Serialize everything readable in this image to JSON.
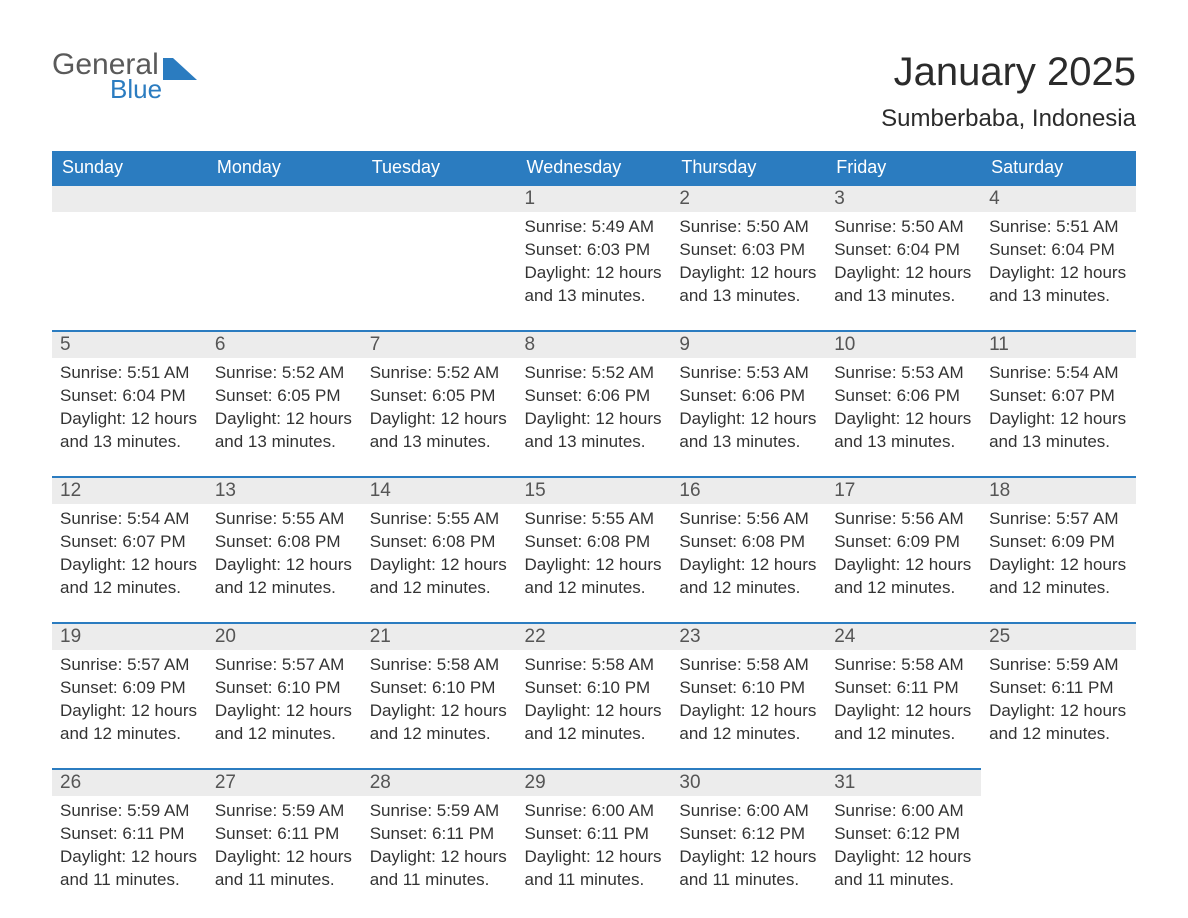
{
  "logo": {
    "general": "General",
    "blue": "Blue"
  },
  "title": "January 2025",
  "location": "Sumberbaba, Indonesia",
  "colors": {
    "header_bg": "#2b7cc0",
    "header_text": "#ffffff",
    "daynum_bg": "#ececec",
    "border_top": "#2b7cc0",
    "body_text": "#333333",
    "page_bg": "#ffffff"
  },
  "day_headers": [
    "Sunday",
    "Monday",
    "Tuesday",
    "Wednesday",
    "Thursday",
    "Friday",
    "Saturday"
  ],
  "weeks": [
    [
      null,
      null,
      null,
      {
        "n": "1",
        "sr": "Sunrise: 5:49 AM",
        "ss": "Sunset: 6:03 PM",
        "d1": "Daylight: 12 hours",
        "d2": "and 13 minutes."
      },
      {
        "n": "2",
        "sr": "Sunrise: 5:50 AM",
        "ss": "Sunset: 6:03 PM",
        "d1": "Daylight: 12 hours",
        "d2": "and 13 minutes."
      },
      {
        "n": "3",
        "sr": "Sunrise: 5:50 AM",
        "ss": "Sunset: 6:04 PM",
        "d1": "Daylight: 12 hours",
        "d2": "and 13 minutes."
      },
      {
        "n": "4",
        "sr": "Sunrise: 5:51 AM",
        "ss": "Sunset: 6:04 PM",
        "d1": "Daylight: 12 hours",
        "d2": "and 13 minutes."
      }
    ],
    [
      {
        "n": "5",
        "sr": "Sunrise: 5:51 AM",
        "ss": "Sunset: 6:04 PM",
        "d1": "Daylight: 12 hours",
        "d2": "and 13 minutes."
      },
      {
        "n": "6",
        "sr": "Sunrise: 5:52 AM",
        "ss": "Sunset: 6:05 PM",
        "d1": "Daylight: 12 hours",
        "d2": "and 13 minutes."
      },
      {
        "n": "7",
        "sr": "Sunrise: 5:52 AM",
        "ss": "Sunset: 6:05 PM",
        "d1": "Daylight: 12 hours",
        "d2": "and 13 minutes."
      },
      {
        "n": "8",
        "sr": "Sunrise: 5:52 AM",
        "ss": "Sunset: 6:06 PM",
        "d1": "Daylight: 12 hours",
        "d2": "and 13 minutes."
      },
      {
        "n": "9",
        "sr": "Sunrise: 5:53 AM",
        "ss": "Sunset: 6:06 PM",
        "d1": "Daylight: 12 hours",
        "d2": "and 13 minutes."
      },
      {
        "n": "10",
        "sr": "Sunrise: 5:53 AM",
        "ss": "Sunset: 6:06 PM",
        "d1": "Daylight: 12 hours",
        "d2": "and 13 minutes."
      },
      {
        "n": "11",
        "sr": "Sunrise: 5:54 AM",
        "ss": "Sunset: 6:07 PM",
        "d1": "Daylight: 12 hours",
        "d2": "and 13 minutes."
      }
    ],
    [
      {
        "n": "12",
        "sr": "Sunrise: 5:54 AM",
        "ss": "Sunset: 6:07 PM",
        "d1": "Daylight: 12 hours",
        "d2": "and 12 minutes."
      },
      {
        "n": "13",
        "sr": "Sunrise: 5:55 AM",
        "ss": "Sunset: 6:08 PM",
        "d1": "Daylight: 12 hours",
        "d2": "and 12 minutes."
      },
      {
        "n": "14",
        "sr": "Sunrise: 5:55 AM",
        "ss": "Sunset: 6:08 PM",
        "d1": "Daylight: 12 hours",
        "d2": "and 12 minutes."
      },
      {
        "n": "15",
        "sr": "Sunrise: 5:55 AM",
        "ss": "Sunset: 6:08 PM",
        "d1": "Daylight: 12 hours",
        "d2": "and 12 minutes."
      },
      {
        "n": "16",
        "sr": "Sunrise: 5:56 AM",
        "ss": "Sunset: 6:08 PM",
        "d1": "Daylight: 12 hours",
        "d2": "and 12 minutes."
      },
      {
        "n": "17",
        "sr": "Sunrise: 5:56 AM",
        "ss": "Sunset: 6:09 PM",
        "d1": "Daylight: 12 hours",
        "d2": "and 12 minutes."
      },
      {
        "n": "18",
        "sr": "Sunrise: 5:57 AM",
        "ss": "Sunset: 6:09 PM",
        "d1": "Daylight: 12 hours",
        "d2": "and 12 minutes."
      }
    ],
    [
      {
        "n": "19",
        "sr": "Sunrise: 5:57 AM",
        "ss": "Sunset: 6:09 PM",
        "d1": "Daylight: 12 hours",
        "d2": "and 12 minutes."
      },
      {
        "n": "20",
        "sr": "Sunrise: 5:57 AM",
        "ss": "Sunset: 6:10 PM",
        "d1": "Daylight: 12 hours",
        "d2": "and 12 minutes."
      },
      {
        "n": "21",
        "sr": "Sunrise: 5:58 AM",
        "ss": "Sunset: 6:10 PM",
        "d1": "Daylight: 12 hours",
        "d2": "and 12 minutes."
      },
      {
        "n": "22",
        "sr": "Sunrise: 5:58 AM",
        "ss": "Sunset: 6:10 PM",
        "d1": "Daylight: 12 hours",
        "d2": "and 12 minutes."
      },
      {
        "n": "23",
        "sr": "Sunrise: 5:58 AM",
        "ss": "Sunset: 6:10 PM",
        "d1": "Daylight: 12 hours",
        "d2": "and 12 minutes."
      },
      {
        "n": "24",
        "sr": "Sunrise: 5:58 AM",
        "ss": "Sunset: 6:11 PM",
        "d1": "Daylight: 12 hours",
        "d2": "and 12 minutes."
      },
      {
        "n": "25",
        "sr": "Sunrise: 5:59 AM",
        "ss": "Sunset: 6:11 PM",
        "d1": "Daylight: 12 hours",
        "d2": "and 12 minutes."
      }
    ],
    [
      {
        "n": "26",
        "sr": "Sunrise: 5:59 AM",
        "ss": "Sunset: 6:11 PM",
        "d1": "Daylight: 12 hours",
        "d2": "and 11 minutes."
      },
      {
        "n": "27",
        "sr": "Sunrise: 5:59 AM",
        "ss": "Sunset: 6:11 PM",
        "d1": "Daylight: 12 hours",
        "d2": "and 11 minutes."
      },
      {
        "n": "28",
        "sr": "Sunrise: 5:59 AM",
        "ss": "Sunset: 6:11 PM",
        "d1": "Daylight: 12 hours",
        "d2": "and 11 minutes."
      },
      {
        "n": "29",
        "sr": "Sunrise: 6:00 AM",
        "ss": "Sunset: 6:11 PM",
        "d1": "Daylight: 12 hours",
        "d2": "and 11 minutes."
      },
      {
        "n": "30",
        "sr": "Sunrise: 6:00 AM",
        "ss": "Sunset: 6:12 PM",
        "d1": "Daylight: 12 hours",
        "d2": "and 11 minutes."
      },
      {
        "n": "31",
        "sr": "Sunrise: 6:00 AM",
        "ss": "Sunset: 6:12 PM",
        "d1": "Daylight: 12 hours",
        "d2": "and 11 minutes."
      },
      null
    ]
  ]
}
